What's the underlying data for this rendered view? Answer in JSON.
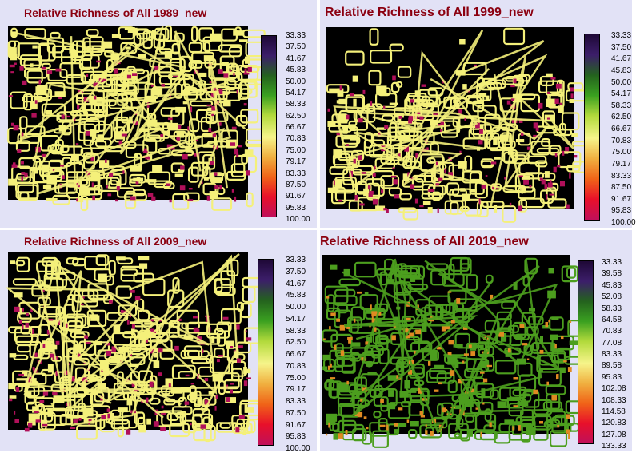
{
  "colors": {
    "background": "#000000",
    "outline": "#f4f07a",
    "patch_magenta": "#b0105a",
    "green": "#4c9e1e",
    "orange": "#e08a22",
    "title": "#8b0010",
    "ramp": [
      "#1e0836",
      "#3c1e6a",
      "#24621e",
      "#3aa020",
      "#b2da3c",
      "#f6f48a",
      "#f0b040",
      "#f06418",
      "#e8102a",
      "#c0105a"
    ]
  },
  "panels": [
    {
      "title": "Relative Richness of All 1989_new",
      "legend_ticks": [
        "33.33",
        "37.50",
        "41.67",
        "45.83",
        "50.00",
        "54.17",
        "58.33",
        "62.50",
        "66.67",
        "70.83",
        "75.00",
        "79.17",
        "83.33",
        "87.50",
        "91.67",
        "95.83",
        "100.00"
      ],
      "density": "dense",
      "palette": "yellow"
    },
    {
      "title": "Relative Richness of All 1999_new",
      "legend_ticks": [
        "33.33",
        "37.50",
        "41.67",
        "45.83",
        "50.00",
        "54.17",
        "58.33",
        "62.50",
        "66.67",
        "70.83",
        "75.00",
        "79.17",
        "83.33",
        "87.50",
        "91.67",
        "95.83",
        "100.00"
      ],
      "density": "sparse-top",
      "palette": "yellow"
    },
    {
      "title": "Relative Richness of All 2009_new",
      "legend_ticks": [
        "33.33",
        "37.50",
        "41.67",
        "45.83",
        "50.00",
        "54.17",
        "58.33",
        "62.50",
        "66.67",
        "70.83",
        "75.00",
        "79.17",
        "83.33",
        "87.50",
        "91.67",
        "95.83",
        "100.00"
      ],
      "density": "dense-left",
      "palette": "yellow"
    },
    {
      "title": "Relative Richness of All 2019_new",
      "legend_ticks": [
        "33.33",
        "39.58",
        "45.83",
        "52.08",
        "58.33",
        "64.58",
        "70.83",
        "77.08",
        "83.33",
        "89.58",
        "95.83",
        "102.08",
        "108.33",
        "114.58",
        "120.83",
        "127.08",
        "133.33"
      ],
      "density": "dense-left",
      "palette": "green"
    }
  ]
}
